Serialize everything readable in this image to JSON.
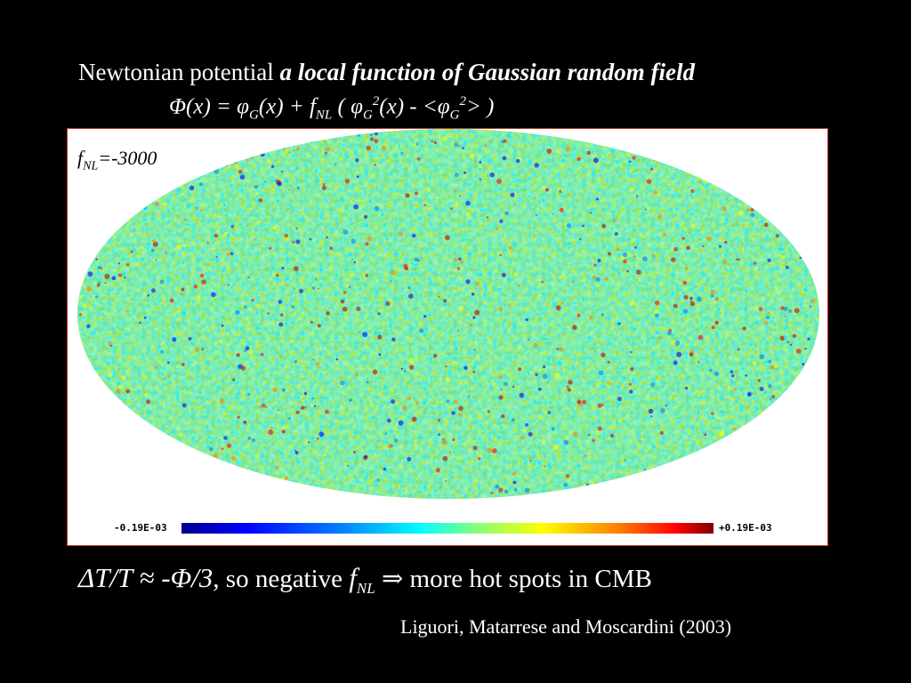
{
  "slide": {
    "title_plain": "Newtonian potential",
    "title_emph": "a local function of Gaussian random field",
    "formula": {
      "Phi_x": "Φ(x)",
      "eq": " = ",
      "phi": "φ",
      "sub_G": "G",
      "x": "(x)",
      "plus": " + f",
      "sub_NL": "NL",
      "paren_open": " ( ",
      "sup_2": "2",
      "x_minus": "(x) - <",
      "close": "> )"
    },
    "map": {
      "fnl_prefix": "f",
      "fnl_sub": "NL",
      "fnl_value": "=-3000",
      "colorbar_min": "-0.19E-03",
      "colorbar_max": "+0.19E-03"
    },
    "bottom_line": {
      "expr": "ΔT/T ≈ -Φ/3",
      "comma": ", so negative",
      "f": "f",
      "sub": "NL",
      "arrow": "⇒",
      "rest": "more hot spots in CMB"
    },
    "citation": "Liguori, Matarrese and  Moscardini (2003)"
  }
}
